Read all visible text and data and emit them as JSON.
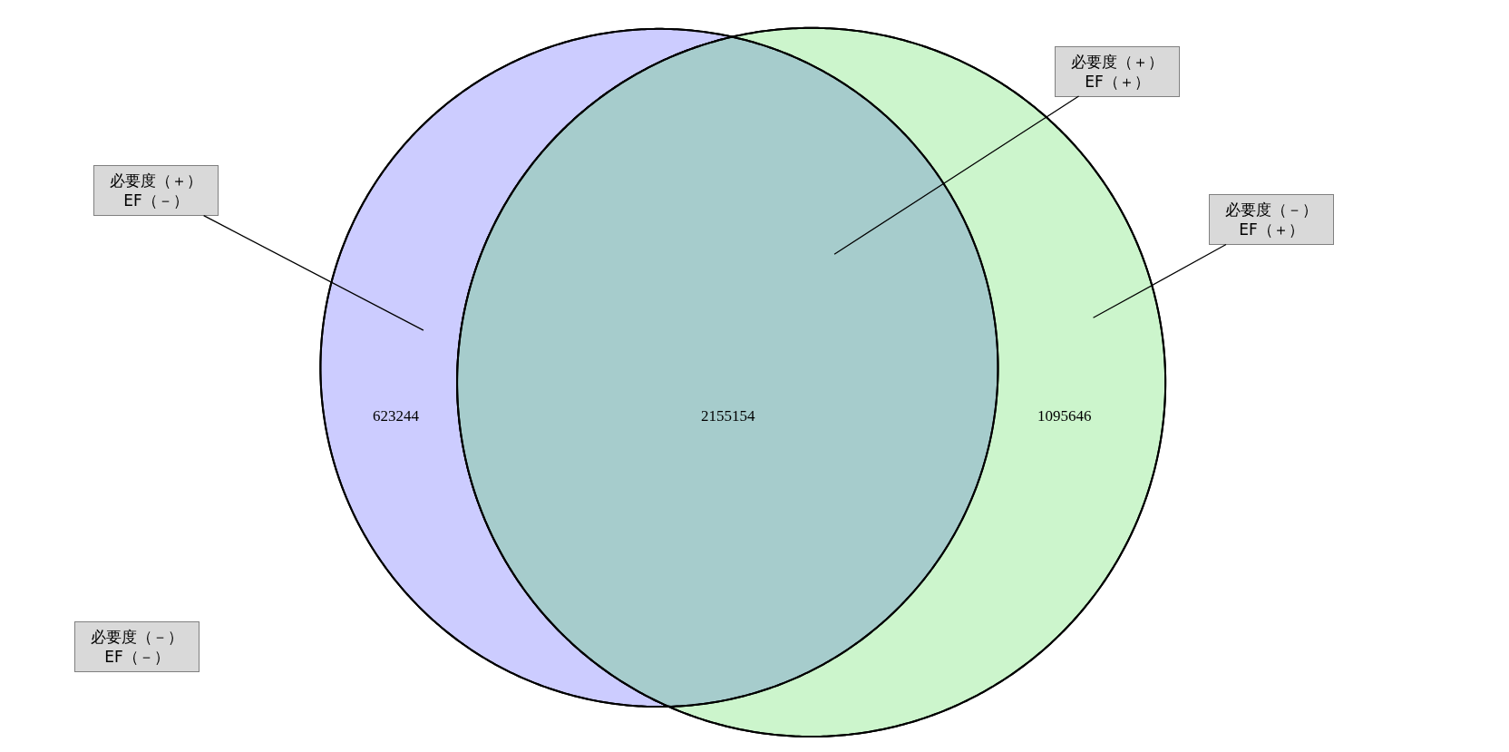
{
  "chart_data": {
    "type": "other",
    "categories": [
      null,
      null,
      null
    ],
    "values": [
      623244,
      2155154,
      1095646
    ],
    "colors": [
      "#ccccff",
      "#a6cccc",
      "#ccf5cc"
    ],
    "data_labels": true,
    "annotations": [
      "必要度（＋）\nEF（－）",
      "必要度（＋）\nEF（＋）",
      "必要度（－）\nEF（＋）",
      "必要度（－）\nEF（－）"
    ]
  }
}
